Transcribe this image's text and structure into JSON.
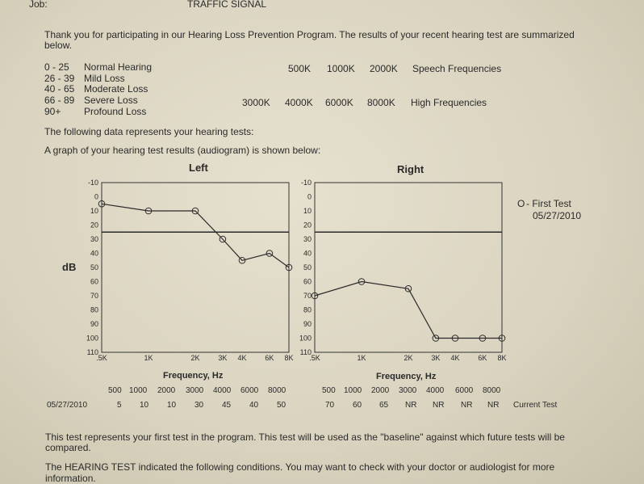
{
  "header": {
    "job_label": "Job:",
    "job_value": "TRAFFIC SIGNAL"
  },
  "intro": [
    "Thank you for participating in our Hearing Loss Prevention Program.  The results of your recent hearing test are summarized",
    "below."
  ],
  "legend_ranges": [
    {
      "range": "0  -  25",
      "label": "Normal Hearing"
    },
    {
      "range": "26 -  39",
      "label": "Mild Loss"
    },
    {
      "range": "40 -  65",
      "label": "Moderate Loss"
    },
    {
      "range": "66 -  89",
      "label": "Severe Loss"
    },
    {
      "range": "90+",
      "label": "Profound Loss"
    }
  ],
  "freq_groups": {
    "speech": {
      "freqs": [
        "500K",
        "1000K",
        "2000K"
      ],
      "label": "Speech Frequencies"
    },
    "high": {
      "freqs": [
        "3000K",
        "4000K",
        "6000K",
        "8000K"
      ],
      "label": "High Frequencies"
    }
  },
  "data_line": "The following data represents your hearing tests:",
  "graph_line": "A graph of your hearing test results (audiogram) is shown below:",
  "chart_data": [
    {
      "type": "line",
      "title": "Left",
      "ylabel": "dB",
      "xlabel": "Frequency, Hz",
      "x": [
        ".5K",
        "1K",
        "2K",
        "3K",
        "4K",
        "6K",
        "8K"
      ],
      "yticks": [
        "-10",
        "0",
        "10",
        "20",
        "30",
        "40",
        "50",
        "60",
        "70",
        "80",
        "90",
        "100",
        "110"
      ],
      "ylim": [
        -10,
        110
      ],
      "y_inverted": true,
      "reference_line": 25,
      "series": [
        {
          "name": "First Test",
          "values": [
            5,
            10,
            10,
            30,
            45,
            40,
            50
          ]
        }
      ]
    },
    {
      "type": "line",
      "title": "Right",
      "ylabel": "",
      "xlabel": "Frequency, Hz",
      "x": [
        ".5K",
        "1K",
        "2K",
        "3K",
        "4K",
        "6K",
        "8K"
      ],
      "yticks": [
        "-10",
        "0",
        "10",
        "20",
        "30",
        "40",
        "50",
        "60",
        "70",
        "80",
        "90",
        "100",
        "110"
      ],
      "ylim": [
        -10,
        110
      ],
      "y_inverted": true,
      "reference_line": 25,
      "series": [
        {
          "name": "First Test",
          "values": [
            70,
            60,
            65,
            100,
            100,
            100,
            100
          ]
        }
      ]
    }
  ],
  "legend": {
    "symbol": "O",
    "name": "- First Test",
    "date": "05/27/2010"
  },
  "table": {
    "left_freqs": [
      "500",
      "1000",
      "2000",
      "3000",
      "4000",
      "6000",
      "8000"
    ],
    "right_freqs": [
      "500",
      "1000",
      "2000",
      "3000",
      "4000",
      "6000",
      "8000"
    ],
    "date": "05/27/2010",
    "left_values": [
      "5",
      "10",
      "10",
      "30",
      "45",
      "40",
      "50"
    ],
    "right_values": [
      "70",
      "60",
      "65",
      "NR",
      "NR",
      "NR",
      "NR"
    ],
    "row_label": "Current Test"
  },
  "footer": [
    "This test represents your first test in the program.  This test will be used as the \"baseline\" against which future tests will be",
    "compared.",
    "The HEARING TEST indicated the following conditions.  You may want to check with your doctor or audiologist for more",
    "information."
  ]
}
